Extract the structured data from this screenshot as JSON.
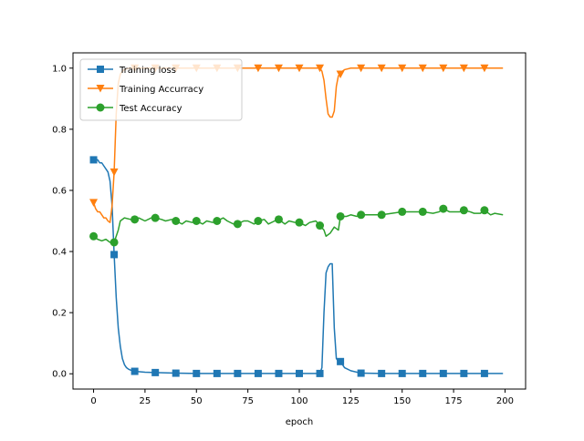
{
  "chart_data": {
    "type": "line",
    "title": "",
    "xlabel": "epoch",
    "ylabel": "",
    "xlim": [
      -10,
      210
    ],
    "ylim": [
      -0.05,
      1.05
    ],
    "xticks": [
      0,
      25,
      50,
      75,
      100,
      125,
      150,
      175,
      200
    ],
    "yticks": [
      0.0,
      0.2,
      0.4,
      0.6,
      0.8,
      1.0
    ],
    "xtick_labels": [
      "0",
      "25",
      "50",
      "75",
      "100",
      "125",
      "150",
      "175",
      "200"
    ],
    "ytick_labels": [
      "0.0",
      "0.2",
      "0.4",
      "0.6",
      "0.8",
      "1.0"
    ],
    "grid": false,
    "legend_position": "top-left",
    "series": [
      {
        "name": "Training loss",
        "color": "#1f77b4",
        "marker": "square",
        "marker_every": 10,
        "x": [
          0,
          1,
          2,
          3,
          4,
          5,
          6,
          7,
          8,
          9,
          10,
          11,
          12,
          13,
          14,
          15,
          16,
          17,
          18,
          19,
          20,
          25,
          30,
          40,
          50,
          60,
          70,
          80,
          90,
          100,
          105,
          108,
          110,
          111,
          112,
          113,
          114,
          115,
          116,
          117,
          118,
          119,
          120,
          122,
          125,
          130,
          140,
          150,
          160,
          170,
          180,
          190,
          199
        ],
        "values": [
          0.7,
          0.7,
          0.7,
          0.69,
          0.69,
          0.68,
          0.67,
          0.66,
          0.63,
          0.55,
          0.39,
          0.25,
          0.15,
          0.09,
          0.05,
          0.03,
          0.02,
          0.015,
          0.012,
          0.01,
          0.008,
          0.005,
          0.004,
          0.002,
          0.001,
          0.001,
          0.001,
          0.001,
          0.001,
          0.001,
          0.001,
          0.001,
          0.001,
          0.02,
          0.2,
          0.33,
          0.35,
          0.36,
          0.36,
          0.15,
          0.05,
          0.04,
          0.04,
          0.02,
          0.01,
          0.002,
          0.001,
          0.001,
          0.001,
          0.001,
          0.001,
          0.001,
          0.001
        ]
      },
      {
        "name": "Training Accurracy",
        "color": "#ff7f0e",
        "marker": "triangle-down",
        "marker_every": 10,
        "x": [
          0,
          1,
          2,
          3,
          4,
          5,
          6,
          7,
          8,
          9,
          10,
          11,
          12,
          13,
          14,
          15,
          17,
          20,
          25,
          30,
          40,
          50,
          60,
          70,
          80,
          90,
          100,
          108,
          110,
          111,
          112,
          113,
          114,
          115,
          116,
          117,
          118,
          119,
          120,
          121,
          122,
          125,
          130,
          140,
          150,
          160,
          170,
          180,
          190,
          199
        ],
        "values": [
          0.56,
          0.54,
          0.53,
          0.53,
          0.52,
          0.51,
          0.51,
          0.5,
          0.495,
          0.55,
          0.66,
          0.85,
          0.95,
          0.98,
          0.99,
          0.995,
          1.0,
          1.0,
          1.0,
          1.0,
          1.0,
          1.0,
          1.0,
          1.0,
          1.0,
          1.0,
          1.0,
          1.0,
          1.0,
          0.99,
          0.96,
          0.9,
          0.85,
          0.84,
          0.84,
          0.86,
          0.94,
          0.975,
          0.98,
          0.99,
          0.995,
          1.0,
          1.0,
          1.0,
          1.0,
          1.0,
          1.0,
          1.0,
          1.0,
          1.0
        ]
      },
      {
        "name": "Test Accuracy",
        "color": "#2ca02c",
        "marker": "circle",
        "marker_every": 10,
        "x": [
          0,
          2,
          4,
          6,
          8,
          10,
          12,
          13,
          15,
          18,
          20,
          22,
          25,
          28,
          30,
          33,
          35,
          38,
          40,
          43,
          45,
          48,
          50,
          53,
          55,
          58,
          60,
          63,
          65,
          68,
          70,
          73,
          75,
          78,
          80,
          83,
          85,
          88,
          90,
          93,
          95,
          98,
          100,
          103,
          105,
          108,
          110,
          112,
          113,
          115,
          117,
          119,
          120,
          123,
          125,
          128,
          130,
          135,
          140,
          145,
          150,
          155,
          160,
          165,
          168,
          170,
          173,
          175,
          178,
          180,
          183,
          185,
          188,
          190,
          193,
          195,
          199
        ],
        "values": [
          0.45,
          0.44,
          0.435,
          0.44,
          0.43,
          0.43,
          0.47,
          0.5,
          0.51,
          0.505,
          0.505,
          0.51,
          0.5,
          0.51,
          0.51,
          0.505,
          0.5,
          0.505,
          0.5,
          0.49,
          0.5,
          0.495,
          0.5,
          0.49,
          0.5,
          0.495,
          0.5,
          0.51,
          0.5,
          0.49,
          0.49,
          0.5,
          0.5,
          0.49,
          0.5,
          0.505,
          0.49,
          0.5,
          0.505,
          0.49,
          0.5,
          0.495,
          0.495,
          0.485,
          0.495,
          0.5,
          0.485,
          0.47,
          0.45,
          0.46,
          0.48,
          0.47,
          0.515,
          0.515,
          0.52,
          0.515,
          0.52,
          0.52,
          0.52,
          0.525,
          0.53,
          0.53,
          0.53,
          0.525,
          0.53,
          0.54,
          0.53,
          0.53,
          0.53,
          0.535,
          0.53,
          0.525,
          0.525,
          0.535,
          0.52,
          0.525,
          0.52
        ]
      }
    ]
  }
}
